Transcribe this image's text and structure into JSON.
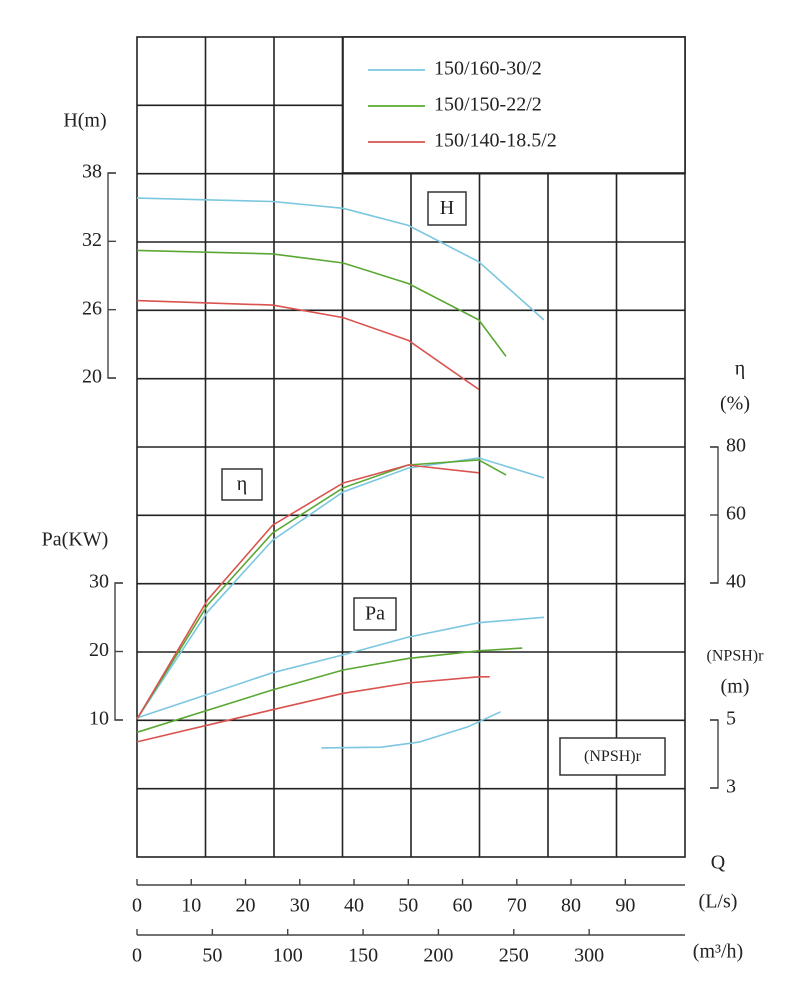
{
  "chart_data": {
    "type": "line",
    "xlabel": "Q",
    "x_axes": [
      {
        "label": "(L/s)",
        "xlim": [
          0,
          101
        ],
        "xticks": [
          0,
          10,
          20,
          30,
          40,
          50,
          60,
          70,
          80,
          90
        ]
      },
      {
        "label": "(m³/h)",
        "xlim": [
          0,
          363.6
        ],
        "xticks": [
          0,
          50,
          100,
          150,
          200,
          250,
          300
        ]
      }
    ],
    "axes": {
      "H": {
        "label": [
          "H(m)"
        ],
        "ylim": [
          20,
          38
        ],
        "yticks": [
          20,
          26,
          32,
          38
        ],
        "box": "H"
      },
      "eta": {
        "label": [
          "η",
          "(%)"
        ],
        "ylim": [
          40,
          80
        ],
        "yticks": [
          40,
          60,
          80
        ],
        "box": "η"
      },
      "Pa": {
        "label": [
          "Pa(KW)"
        ],
        "ylim": [
          10,
          30
        ],
        "yticks": [
          10,
          20,
          30
        ],
        "box": "Pa"
      },
      "NPSH": {
        "label": [
          "(NPSH)r",
          "(m)"
        ],
        "ylim": [
          3,
          5
        ],
        "yticks": [
          3,
          5
        ],
        "box": "(NPSH)r"
      }
    },
    "series": [
      {
        "name": "150/160-30/2",
        "color": "#7cc7e0",
        "H": {
          "x": [
            0,
            25,
            38,
            50,
            63,
            75
          ],
          "values": [
            35.8,
            35.5,
            34.9,
            33.4,
            30.2,
            25.1
          ]
        },
        "eta": {
          "x": [
            0,
            13,
            25,
            38,
            50,
            63,
            75
          ],
          "values": [
            0,
            31.5,
            52.6,
            66.8,
            73.8,
            76.8,
            70.9
          ]
        },
        "Pa": {
          "x": [
            0,
            25,
            38,
            50,
            63,
            75
          ],
          "values": [
            10.3,
            16.9,
            19.5,
            22.1,
            24.2,
            25
          ]
        }
      },
      {
        "name": "150/150-22/2",
        "color": "#5aa832",
        "H": {
          "x": [
            0,
            25,
            38,
            50,
            63,
            68
          ],
          "values": [
            31.2,
            30.9,
            30.1,
            28.3,
            25.1,
            21.9
          ]
        },
        "eta": {
          "x": [
            0,
            13,
            25,
            38,
            50,
            63,
            68
          ],
          "values": [
            0,
            33.5,
            54.7,
            68,
            74.7,
            76.2,
            71.8
          ]
        },
        "Pa": {
          "x": [
            0,
            25,
            38,
            50,
            63,
            71
          ],
          "values": [
            8.2,
            14.4,
            17.3,
            19,
            20.1,
            20.5
          ]
        }
      },
      {
        "name": "150/140-18.5/2",
        "color": "#d9534f",
        "H": {
          "x": [
            0,
            25,
            38,
            50,
            63
          ],
          "values": [
            26.8,
            26.4,
            25.3,
            23.3,
            19
          ]
        },
        "eta": {
          "x": [
            0,
            13,
            25,
            38,
            50,
            63
          ],
          "values": [
            0,
            35,
            57,
            69.4,
            74.7,
            72.4
          ]
        },
        "Pa": {
          "x": [
            0,
            25,
            38,
            50,
            63,
            65
          ],
          "values": [
            6.8,
            11.5,
            13.9,
            15.4,
            16.3,
            16.3
          ]
        }
      }
    ],
    "npsh": {
      "color": "#7cc7e0",
      "x": [
        34,
        45,
        52,
        61,
        67
      ],
      "values": [
        4.18,
        4.2,
        4.35,
        4.8,
        5.24
      ]
    }
  }
}
